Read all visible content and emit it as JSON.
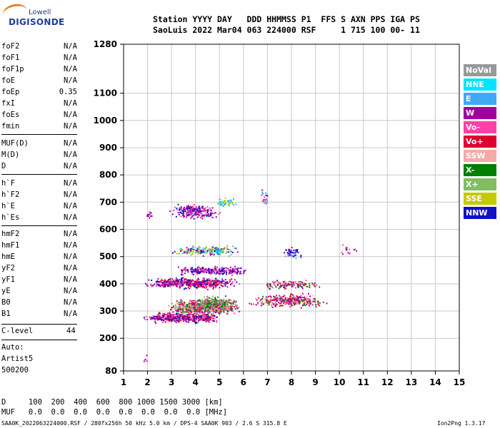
{
  "logo": {
    "top": "Lowell",
    "main": "DIGISONDE"
  },
  "header": {
    "line1": "Station YYYY DAY   DDD HHMMSS P1  FFS S AXN PPS IGA PS",
    "line2": "SaoLuis 2022 Mar04 063 224000 RSF     1 715 100 00- 11"
  },
  "params": [
    {
      "name": "foF2",
      "value": "N/A"
    },
    {
      "name": "foF1",
      "value": "N/A"
    },
    {
      "name": "foF1p",
      "value": "N/A"
    },
    {
      "name": "foE",
      "value": "N/A"
    },
    {
      "name": "foEp",
      "value": "0.35"
    },
    {
      "name": "fxI",
      "value": "N/A"
    },
    {
      "name": "foEs",
      "value": "N/A"
    },
    {
      "name": "fmin",
      "value": "N/A"
    },
    {
      "name": "MUF(D)",
      "value": "N/A"
    },
    {
      "name": "M(D)",
      "value": "N/A"
    },
    {
      "name": "D",
      "value": "N/A"
    },
    {
      "name": "h`F",
      "value": "N/A"
    },
    {
      "name": "h`F2",
      "value": "N/A"
    },
    {
      "name": "h`E",
      "value": "N/A"
    },
    {
      "name": "h`Es",
      "value": "N/A"
    },
    {
      "name": "hmF2",
      "value": "N/A"
    },
    {
      "name": "hmF1",
      "value": "N/A"
    },
    {
      "name": "hmE",
      "value": "N/A"
    },
    {
      "name": "yF2",
      "value": "N/A"
    },
    {
      "name": "yF1",
      "value": "N/A"
    },
    {
      "name": "yE",
      "value": "N/A"
    },
    {
      "name": "B0",
      "value": "N/A"
    },
    {
      "name": "B1",
      "value": "N/A"
    }
  ],
  "clevel": {
    "label": "C-level",
    "value": "44"
  },
  "auto": {
    "line1": "Auto:",
    "line2": "Artist5",
    "line3": "500200"
  },
  "legend": [
    {
      "label": "NoVal",
      "color": "#999999"
    },
    {
      "label": "NNE",
      "color": "#00e5ff"
    },
    {
      "label": "E",
      "color": "#3fa9f5"
    },
    {
      "label": "W",
      "color": "#a0009f"
    },
    {
      "label": "Vo-",
      "color": "#ff3fa6"
    },
    {
      "label": "Vo+",
      "color": "#e00030"
    },
    {
      "label": "SSW",
      "color": "#f5aaaa"
    },
    {
      "label": "X-",
      "color": "#007f00"
    },
    {
      "label": "X+",
      "color": "#7fbf5f"
    },
    {
      "label": "SSE",
      "color": "#c8c800"
    },
    {
      "label": "NNW",
      "color": "#1010c8"
    }
  ],
  "footer": {
    "line1": "D     100  200  400  600  800 1000 1500 3000 [km]",
    "line2": "MUF   0.0  0.0  0.0  0.0  0.0  0.0  0.0  0.0 [MHz]",
    "bottom": "SAA0K_2022063224000.RSF / 280fx256h 50 kHz 5.0 km / DPS-4 SAA0K 903 / 2.6 S 315.8 E",
    "version": "Ion2Png 1.3.17"
  },
  "chart_data": {
    "type": "scatter",
    "x_ticks": [
      1,
      2,
      3,
      4,
      5,
      6,
      7,
      8,
      9,
      10,
      11,
      12,
      13,
      14,
      15
    ],
    "y_ticks": [
      80,
      200,
      300,
      400,
      500,
      600,
      700,
      800,
      900,
      1000,
      1100,
      1280
    ],
    "xlim": [
      1,
      15
    ],
    "ylim": [
      80,
      1280
    ],
    "grid": true,
    "legend_position": "right",
    "clusters": [
      {
        "x": [
          1.6,
          5.2
        ],
        "y": [
          255,
          300
        ],
        "n": 420,
        "colors": [
          "#1010c8",
          "#a0009f",
          "#e00030",
          "#ff3fa6"
        ]
      },
      {
        "x": [
          2.6,
          6.1
        ],
        "y": [
          280,
          350
        ],
        "n": 650,
        "colors": [
          "#e00030",
          "#ff3fa6",
          "#a0009f",
          "#7fbf5f",
          "#007f00",
          "#f5aaaa"
        ]
      },
      {
        "x": [
          3.8,
          5.8
        ],
        "y": [
          300,
          360
        ],
        "n": 220,
        "colors": [
          "#007f00",
          "#7fbf5f",
          "#ff3fa6"
        ]
      },
      {
        "x": [
          6.1,
          9.6
        ],
        "y": [
          310,
          370
        ],
        "n": 330,
        "colors": [
          "#e00030",
          "#ff3fa6",
          "#a0009f",
          "#f5aaaa",
          "#007f00"
        ]
      },
      {
        "x": [
          1.7,
          6.0
        ],
        "y": [
          380,
          430
        ],
        "n": 520,
        "colors": [
          "#a0009f",
          "#1010c8",
          "#ff3fa6",
          "#e00030"
        ]
      },
      {
        "x": [
          3.0,
          6.5
        ],
        "y": [
          430,
          470
        ],
        "n": 250,
        "colors": [
          "#a0009f",
          "#1010c8",
          "#ff3fa6"
        ]
      },
      {
        "x": [
          6.5,
          9.3
        ],
        "y": [
          380,
          420
        ],
        "n": 120,
        "colors": [
          "#ff3fa6",
          "#a0009f",
          "#007f00",
          "#e00030"
        ]
      },
      {
        "x": [
          2.9,
          5.9
        ],
        "y": [
          500,
          545
        ],
        "n": 200,
        "colors": [
          "#c8c800",
          "#a0009f",
          "#00e5ff",
          "#7fbf5f",
          "#1010c8"
        ]
      },
      {
        "x": [
          7.6,
          8.4
        ],
        "y": [
          490,
          540
        ],
        "n": 60,
        "colors": [
          "#1010c8",
          "#3fa9f5",
          "#a0009f"
        ]
      },
      {
        "x": [
          2.8,
          5.1
        ],
        "y": [
          635,
          700
        ],
        "n": 230,
        "colors": [
          "#a0009f",
          "#ff3fa6",
          "#1010c8"
        ]
      },
      {
        "x": [
          4.8,
          5.7
        ],
        "y": [
          680,
          720
        ],
        "n": 50,
        "colors": [
          "#00e5ff",
          "#c8c800",
          "#3fa9f5"
        ]
      },
      {
        "x": [
          6.6,
          7.1
        ],
        "y": [
          680,
          760
        ],
        "n": 25,
        "colors": [
          "#a0009f",
          "#3fa9f5",
          "#ff3fa6"
        ]
      },
      {
        "x": [
          1.9,
          2.2
        ],
        "y": [
          640,
          670
        ],
        "n": 10,
        "colors": [
          "#a0009f"
        ]
      },
      {
        "x": [
          1.8,
          2.0
        ],
        "y": [
          90,
          150
        ],
        "n": 6,
        "colors": [
          "#a0009f",
          "#ff3fa6"
        ]
      },
      {
        "x": [
          9.8,
          11.2
        ],
        "y": [
          480,
          560
        ],
        "n": 14,
        "colors": [
          "#ff3fa6",
          "#a0009f"
        ]
      }
    ]
  }
}
